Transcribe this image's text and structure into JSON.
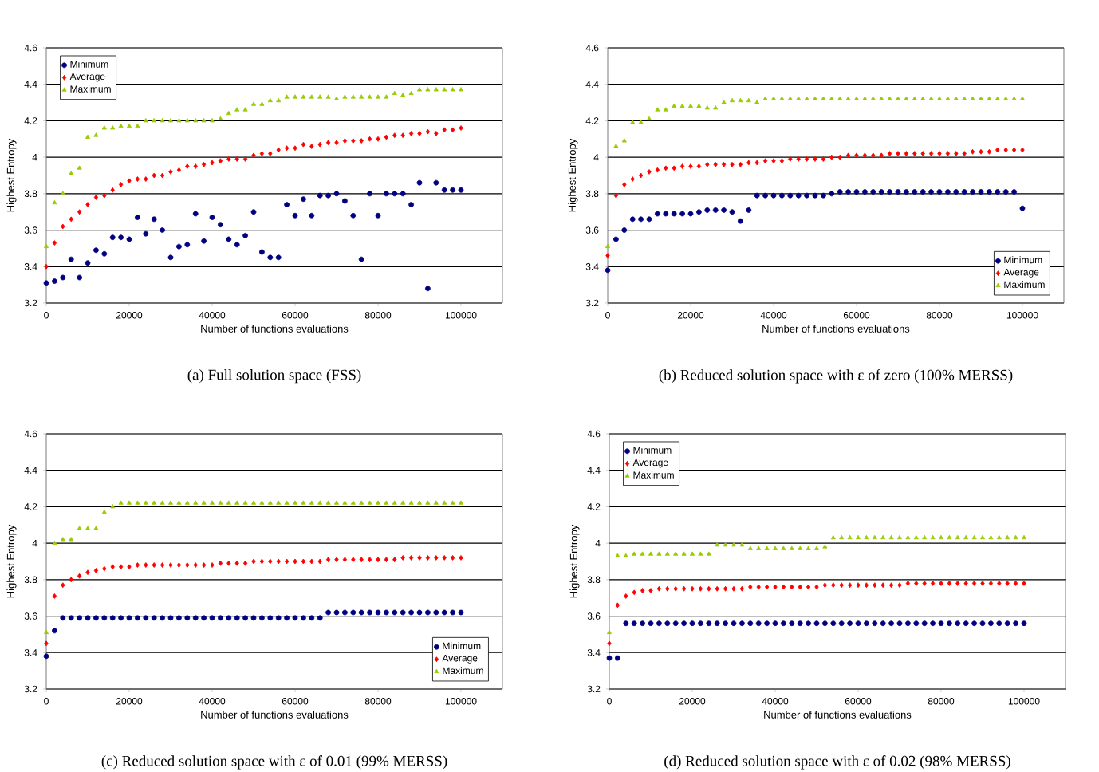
{
  "chart_data": [
    {
      "type": "scatter",
      "title": "(a) Full solution space (FSS)",
      "xlabel": "Number of functions evaluations",
      "ylabel": "Highest Entropy",
      "xlim": [
        0,
        110000
      ],
      "ylim": [
        3.2,
        4.6
      ],
      "xticks": [
        0,
        20000,
        40000,
        60000,
        80000,
        100000
      ],
      "yticks": [
        3.2,
        3.4,
        3.6,
        3.8,
        4,
        4.2,
        4.4,
        4.6
      ],
      "grid": "y",
      "legend": "top left",
      "x": [
        0,
        2000,
        4000,
        6000,
        8000,
        10000,
        12000,
        14000,
        16000,
        18000,
        20000,
        22000,
        24000,
        26000,
        28000,
        30000,
        32000,
        34000,
        36000,
        38000,
        40000,
        42000,
        44000,
        46000,
        48000,
        50000,
        52000,
        54000,
        56000,
        58000,
        60000,
        62000,
        64000,
        66000,
        68000,
        70000,
        72000,
        74000,
        76000,
        78000,
        80000,
        82000,
        84000,
        86000,
        88000,
        90000,
        92000,
        94000,
        96000,
        98000,
        100000
      ],
      "series": [
        {
          "name": "Minimum",
          "color": "#000080",
          "marker": "circle",
          "values": [
            3.31,
            3.32,
            3.34,
            3.44,
            3.34,
            3.42,
            3.49,
            3.47,
            3.56,
            3.56,
            3.55,
            3.67,
            3.58,
            3.66,
            3.6,
            3.45,
            3.51,
            3.52,
            3.69,
            3.54,
            3.67,
            3.63,
            3.55,
            3.52,
            3.57,
            3.7,
            3.48,
            3.45,
            3.45,
            3.74,
            3.68,
            3.77,
            3.68,
            3.79,
            3.79,
            3.8,
            3.76,
            3.68,
            3.44,
            3.8,
            3.68,
            3.8,
            3.8,
            3.8,
            3.74,
            3.86,
            3.28,
            3.86,
            3.82,
            3.82,
            3.82
          ]
        },
        {
          "name": "Average",
          "color": "#ff0000",
          "marker": "diamond",
          "values": [
            3.4,
            3.53,
            3.62,
            3.66,
            3.7,
            3.74,
            3.78,
            3.79,
            3.82,
            3.85,
            3.87,
            3.88,
            3.88,
            3.9,
            3.9,
            3.92,
            3.93,
            3.95,
            3.95,
            3.96,
            3.97,
            3.98,
            3.99,
            3.99,
            3.99,
            4.01,
            4.02,
            4.02,
            4.04,
            4.05,
            4.05,
            4.07,
            4.06,
            4.07,
            4.08,
            4.08,
            4.09,
            4.09,
            4.09,
            4.1,
            4.1,
            4.11,
            4.12,
            4.12,
            4.13,
            4.13,
            4.14,
            4.13,
            4.15,
            4.15,
            4.16
          ]
        },
        {
          "name": "Maximum",
          "color": "#99cc00",
          "marker": "triangle",
          "values": [
            3.51,
            3.75,
            3.8,
            3.91,
            3.94,
            4.11,
            4.12,
            4.16,
            4.16,
            4.17,
            4.17,
            4.17,
            4.2,
            4.2,
            4.2,
            4.2,
            4.2,
            4.2,
            4.2,
            4.2,
            4.2,
            4.21,
            4.24,
            4.26,
            4.26,
            4.29,
            4.29,
            4.31,
            4.31,
            4.33,
            4.33,
            4.33,
            4.33,
            4.33,
            4.33,
            4.32,
            4.33,
            4.33,
            4.33,
            4.33,
            4.33,
            4.33,
            4.35,
            4.34,
            4.35,
            4.37,
            4.37,
            4.37,
            4.37,
            4.37,
            4.37
          ]
        }
      ]
    },
    {
      "type": "scatter",
      "title": "(b) Reduced solution space with ε of zero (100% MERSS)",
      "xlabel": "Number of functions evaluations",
      "ylabel": "Highest Entropy",
      "xlim": [
        0,
        110000
      ],
      "ylim": [
        3.2,
        4.6
      ],
      "xticks": [
        0,
        20000,
        40000,
        60000,
        80000,
        100000
      ],
      "yticks": [
        3.2,
        3.4,
        3.6,
        3.8,
        4,
        4.2,
        4.4,
        4.6
      ],
      "grid": "y",
      "legend": "bottom right",
      "x": [
        0,
        2000,
        4000,
        6000,
        8000,
        10000,
        12000,
        14000,
        16000,
        18000,
        20000,
        22000,
        24000,
        26000,
        28000,
        30000,
        32000,
        34000,
        36000,
        38000,
        40000,
        42000,
        44000,
        46000,
        48000,
        50000,
        52000,
        54000,
        56000,
        58000,
        60000,
        62000,
        64000,
        66000,
        68000,
        70000,
        72000,
        74000,
        76000,
        78000,
        80000,
        82000,
        84000,
        86000,
        88000,
        90000,
        92000,
        94000,
        96000,
        98000,
        100000
      ],
      "series": [
        {
          "name": "Minimum",
          "color": "#000080",
          "marker": "circle",
          "values": [
            3.38,
            3.55,
            3.6,
            3.66,
            3.66,
            3.66,
            3.69,
            3.69,
            3.69,
            3.69,
            3.69,
            3.7,
            3.71,
            3.71,
            3.71,
            3.7,
            3.65,
            3.71,
            3.79,
            3.79,
            3.79,
            3.79,
            3.79,
            3.79,
            3.79,
            3.79,
            3.79,
            3.8,
            3.81,
            3.81,
            3.81,
            3.81,
            3.81,
            3.81,
            3.81,
            3.81,
            3.81,
            3.81,
            3.81,
            3.81,
            3.81,
            3.81,
            3.81,
            3.81,
            3.81,
            3.81,
            3.81,
            3.81,
            3.81,
            3.81,
            3.72
          ]
        },
        {
          "name": "Average",
          "color": "#ff0000",
          "marker": "diamond",
          "values": [
            3.46,
            3.79,
            3.85,
            3.88,
            3.9,
            3.92,
            3.93,
            3.94,
            3.94,
            3.95,
            3.95,
            3.95,
            3.96,
            3.96,
            3.96,
            3.96,
            3.96,
            3.97,
            3.97,
            3.98,
            3.98,
            3.98,
            3.99,
            3.99,
            3.99,
            3.99,
            3.99,
            4.0,
            4.0,
            4.01,
            4.01,
            4.01,
            4.01,
            4.01,
            4.02,
            4.02,
            4.02,
            4.02,
            4.02,
            4.02,
            4.02,
            4.02,
            4.02,
            4.02,
            4.03,
            4.03,
            4.03,
            4.04,
            4.04,
            4.04,
            4.04
          ]
        },
        {
          "name": "Maximum",
          "color": "#99cc00",
          "marker": "triangle",
          "values": [
            3.51,
            4.06,
            4.09,
            4.19,
            4.19,
            4.21,
            4.26,
            4.26,
            4.28,
            4.28,
            4.28,
            4.28,
            4.27,
            4.27,
            4.3,
            4.31,
            4.31,
            4.31,
            4.3,
            4.32,
            4.32,
            4.32,
            4.32,
            4.32,
            4.32,
            4.32,
            4.32,
            4.32,
            4.32,
            4.32,
            4.32,
            4.32,
            4.32,
            4.32,
            4.32,
            4.32,
            4.32,
            4.32,
            4.32,
            4.32,
            4.32,
            4.32,
            4.32,
            4.32,
            4.32,
            4.32,
            4.32,
            4.32,
            4.32,
            4.32,
            4.32
          ]
        }
      ]
    },
    {
      "type": "scatter",
      "title": "(c) Reduced solution space with ε of 0.01 (99% MERSS)",
      "xlabel": "Number of functions evaluations",
      "ylabel": "Highest Entropy",
      "xlim": [
        0,
        110000
      ],
      "ylim": [
        3.2,
        4.6
      ],
      "xticks": [
        0,
        20000,
        40000,
        60000,
        80000,
        100000
      ],
      "yticks": [
        3.2,
        3.4,
        3.6,
        3.8,
        4,
        4.2,
        4.4,
        4.6
      ],
      "grid": "y",
      "legend": "bottom right",
      "x": [
        0,
        2000,
        4000,
        6000,
        8000,
        10000,
        12000,
        14000,
        16000,
        18000,
        20000,
        22000,
        24000,
        26000,
        28000,
        30000,
        32000,
        34000,
        36000,
        38000,
        40000,
        42000,
        44000,
        46000,
        48000,
        50000,
        52000,
        54000,
        56000,
        58000,
        60000,
        62000,
        64000,
        66000,
        68000,
        70000,
        72000,
        74000,
        76000,
        78000,
        80000,
        82000,
        84000,
        86000,
        88000,
        90000,
        92000,
        94000,
        96000,
        98000,
        100000
      ],
      "series": [
        {
          "name": "Minimum",
          "color": "#000080",
          "marker": "circle",
          "values": [
            3.38,
            3.52,
            3.59,
            3.59,
            3.59,
            3.59,
            3.59,
            3.59,
            3.59,
            3.59,
            3.59,
            3.59,
            3.59,
            3.59,
            3.59,
            3.59,
            3.59,
            3.59,
            3.59,
            3.59,
            3.59,
            3.59,
            3.59,
            3.59,
            3.59,
            3.59,
            3.59,
            3.59,
            3.59,
            3.59,
            3.59,
            3.59,
            3.59,
            3.59,
            3.62,
            3.62,
            3.62,
            3.62,
            3.62,
            3.62,
            3.62,
            3.62,
            3.62,
            3.62,
            3.62,
            3.62,
            3.62,
            3.62,
            3.62,
            3.62,
            3.62
          ]
        },
        {
          "name": "Average",
          "color": "#ff0000",
          "marker": "diamond",
          "values": [
            3.45,
            3.71,
            3.77,
            3.8,
            3.82,
            3.84,
            3.85,
            3.86,
            3.87,
            3.87,
            3.87,
            3.88,
            3.88,
            3.88,
            3.88,
            3.88,
            3.88,
            3.88,
            3.88,
            3.88,
            3.88,
            3.89,
            3.89,
            3.89,
            3.89,
            3.9,
            3.9,
            3.9,
            3.9,
            3.9,
            3.9,
            3.9,
            3.9,
            3.9,
            3.91,
            3.91,
            3.91,
            3.91,
            3.91,
            3.91,
            3.91,
            3.91,
            3.91,
            3.92,
            3.92,
            3.92,
            3.92,
            3.92,
            3.92,
            3.92,
            3.92
          ]
        },
        {
          "name": "Maximum",
          "color": "#99cc00",
          "marker": "triangle",
          "values": [
            3.51,
            4.0,
            4.02,
            4.02,
            4.08,
            4.08,
            4.08,
            4.17,
            4.2,
            4.22,
            4.22,
            4.22,
            4.22,
            4.22,
            4.22,
            4.22,
            4.22,
            4.22,
            4.22,
            4.22,
            4.22,
            4.22,
            4.22,
            4.22,
            4.22,
            4.22,
            4.22,
            4.22,
            4.22,
            4.22,
            4.22,
            4.22,
            4.22,
            4.22,
            4.22,
            4.22,
            4.22,
            4.22,
            4.22,
            4.22,
            4.22,
            4.22,
            4.22,
            4.22,
            4.22,
            4.22,
            4.22,
            4.22,
            4.22,
            4.22,
            4.22
          ]
        }
      ]
    },
    {
      "type": "scatter",
      "title": "(d) Reduced solution space with ε of 0.02 (98% MERSS)",
      "xlabel": "Number of functions evaluations",
      "ylabel": "Highest Entropy",
      "xlim": [
        0,
        110000
      ],
      "ylim": [
        3.2,
        4.6
      ],
      "xticks": [
        0,
        20000,
        40000,
        60000,
        80000,
        100000
      ],
      "yticks": [
        3.2,
        3.4,
        3.6,
        3.8,
        4,
        4.2,
        4.4,
        4.6
      ],
      "grid": "y",
      "legend": "top left",
      "x": [
        0,
        2000,
        4000,
        6000,
        8000,
        10000,
        12000,
        14000,
        16000,
        18000,
        20000,
        22000,
        24000,
        26000,
        28000,
        30000,
        32000,
        34000,
        36000,
        38000,
        40000,
        42000,
        44000,
        46000,
        48000,
        50000,
        52000,
        54000,
        56000,
        58000,
        60000,
        62000,
        64000,
        66000,
        68000,
        70000,
        72000,
        74000,
        76000,
        78000,
        80000,
        82000,
        84000,
        86000,
        88000,
        90000,
        92000,
        94000,
        96000,
        98000,
        100000
      ],
      "series": [
        {
          "name": "Minimum",
          "color": "#000080",
          "marker": "circle",
          "values": [
            3.37,
            3.37,
            3.56,
            3.56,
            3.56,
            3.56,
            3.56,
            3.56,
            3.56,
            3.56,
            3.56,
            3.56,
            3.56,
            3.56,
            3.56,
            3.56,
            3.56,
            3.56,
            3.56,
            3.56,
            3.56,
            3.56,
            3.56,
            3.56,
            3.56,
            3.56,
            3.56,
            3.56,
            3.56,
            3.56,
            3.56,
            3.56,
            3.56,
            3.56,
            3.56,
            3.56,
            3.56,
            3.56,
            3.56,
            3.56,
            3.56,
            3.56,
            3.56,
            3.56,
            3.56,
            3.56,
            3.56,
            3.56,
            3.56,
            3.56,
            3.56
          ]
        },
        {
          "name": "Average",
          "color": "#ff0000",
          "marker": "diamond",
          "values": [
            3.45,
            3.66,
            3.71,
            3.73,
            3.74,
            3.74,
            3.75,
            3.75,
            3.75,
            3.75,
            3.75,
            3.75,
            3.75,
            3.75,
            3.75,
            3.75,
            3.75,
            3.76,
            3.76,
            3.76,
            3.76,
            3.76,
            3.76,
            3.76,
            3.76,
            3.76,
            3.77,
            3.77,
            3.77,
            3.77,
            3.77,
            3.77,
            3.77,
            3.77,
            3.77,
            3.77,
            3.78,
            3.78,
            3.78,
            3.78,
            3.78,
            3.78,
            3.78,
            3.78,
            3.78,
            3.78,
            3.78,
            3.78,
            3.78,
            3.78,
            3.78
          ]
        },
        {
          "name": "Maximum",
          "color": "#99cc00",
          "marker": "triangle",
          "values": [
            3.51,
            3.93,
            3.93,
            3.94,
            3.94,
            3.94,
            3.94,
            3.94,
            3.94,
            3.94,
            3.94,
            3.94,
            3.94,
            3.99,
            3.99,
            3.99,
            3.99,
            3.97,
            3.97,
            3.97,
            3.97,
            3.97,
            3.97,
            3.97,
            3.97,
            3.97,
            3.98,
            4.03,
            4.03,
            4.03,
            4.03,
            4.03,
            4.03,
            4.03,
            4.03,
            4.03,
            4.03,
            4.03,
            4.03,
            4.03,
            4.03,
            4.03,
            4.03,
            4.03,
            4.03,
            4.03,
            4.03,
            4.03,
            4.03,
            4.03,
            4.03
          ]
        }
      ]
    }
  ]
}
